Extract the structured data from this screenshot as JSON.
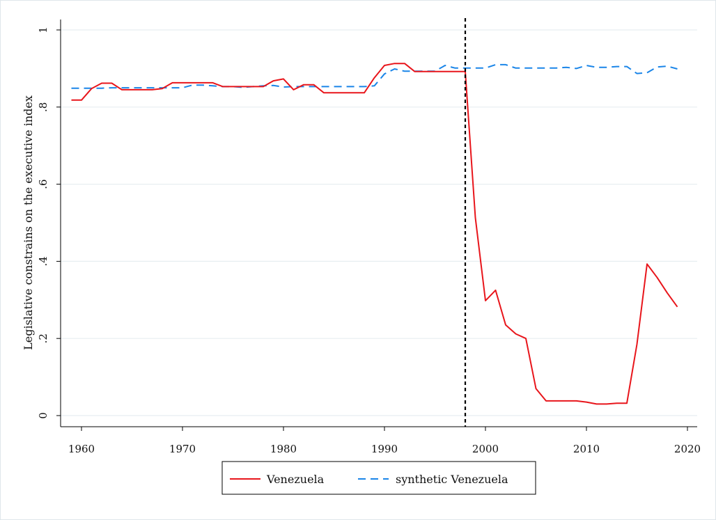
{
  "chart_data": {
    "type": "line",
    "title": "",
    "xlabel": "",
    "ylabel": "Legislative constrains on the executive index",
    "xlim": [
      1958,
      2021
    ],
    "ylim": [
      -0.02,
      1.03
    ],
    "xticks": [
      1960,
      1970,
      1980,
      1990,
      2000,
      2010,
      2020
    ],
    "xtick_labels": [
      "1960",
      "1970",
      "1980",
      "1990",
      "2000",
      "2010",
      "2020"
    ],
    "yticks": [
      0,
      0.2,
      0.4,
      0.6,
      0.8,
      1
    ],
    "ytick_labels": [
      "0",
      ".2",
      ".4",
      ".6",
      ".8",
      "1"
    ],
    "grid": true,
    "vline_x": 1998,
    "legend_position": "bottom",
    "series": [
      {
        "name": "Venezuela",
        "color": "#e8151b",
        "dash": "solid",
        "x": [
          1959,
          1960,
          1961,
          1962,
          1963,
          1964,
          1965,
          1966,
          1967,
          1968,
          1969,
          1970,
          1971,
          1972,
          1973,
          1974,
          1975,
          1976,
          1977,
          1978,
          1979,
          1980,
          1981,
          1982,
          1983,
          1984,
          1985,
          1986,
          1987,
          1988,
          1989,
          1990,
          1991,
          1992,
          1993,
          1994,
          1995,
          1996,
          1997,
          1998,
          1999,
          2000,
          2001,
          2002,
          2003,
          2004,
          2005,
          2006,
          2007,
          2008,
          2009,
          2010,
          2011,
          2012,
          2013,
          2014,
          2015,
          2016,
          2017,
          2018,
          2019
        ],
        "y": [
          0.818,
          0.818,
          0.848,
          0.862,
          0.862,
          0.845,
          0.845,
          0.845,
          0.845,
          0.848,
          0.863,
          0.863,
          0.863,
          0.863,
          0.863,
          0.853,
          0.853,
          0.853,
          0.853,
          0.853,
          0.868,
          0.873,
          0.845,
          0.858,
          0.858,
          0.837,
          0.837,
          0.837,
          0.837,
          0.837,
          0.876,
          0.908,
          0.913,
          0.913,
          0.892,
          0.892,
          0.892,
          0.892,
          0.892,
          0.892,
          0.513,
          0.298,
          0.325,
          0.235,
          0.212,
          0.2,
          0.07,
          0.038,
          0.038,
          0.038,
          0.038,
          0.035,
          0.03,
          0.03,
          0.032,
          0.032,
          0.185,
          0.393,
          0.358,
          0.318,
          0.282
        ]
      },
      {
        "name": "synthetic Venezuela",
        "color": "#1a85e8",
        "dash": "dashed",
        "x": [
          1959,
          1960,
          1961,
          1962,
          1963,
          1964,
          1965,
          1966,
          1967,
          1968,
          1969,
          1970,
          1971,
          1972,
          1973,
          1974,
          1975,
          1976,
          1977,
          1978,
          1979,
          1980,
          1981,
          1982,
          1983,
          1984,
          1985,
          1986,
          1987,
          1988,
          1989,
          1990,
          1991,
          1992,
          1993,
          1994,
          1995,
          1996,
          1997,
          1998,
          1999,
          2000,
          2001,
          2002,
          2003,
          2004,
          2005,
          2006,
          2007,
          2008,
          2009,
          2010,
          2011,
          2012,
          2013,
          2014,
          2015,
          2016,
          2017,
          2018,
          2019
        ],
        "y": [
          0.849,
          0.849,
          0.849,
          0.849,
          0.85,
          0.85,
          0.85,
          0.85,
          0.85,
          0.85,
          0.85,
          0.85,
          0.857,
          0.857,
          0.855,
          0.853,
          0.853,
          0.851,
          0.853,
          0.855,
          0.856,
          0.852,
          0.853,
          0.853,
          0.853,
          0.853,
          0.853,
          0.853,
          0.853,
          0.853,
          0.855,
          0.886,
          0.899,
          0.893,
          0.893,
          0.893,
          0.893,
          0.908,
          0.901,
          0.901,
          0.901,
          0.901,
          0.91,
          0.91,
          0.901,
          0.901,
          0.901,
          0.901,
          0.901,
          0.903,
          0.9,
          0.908,
          0.903,
          0.903,
          0.905,
          0.905,
          0.887,
          0.889,
          0.904,
          0.906,
          0.899
        ]
      }
    ]
  }
}
